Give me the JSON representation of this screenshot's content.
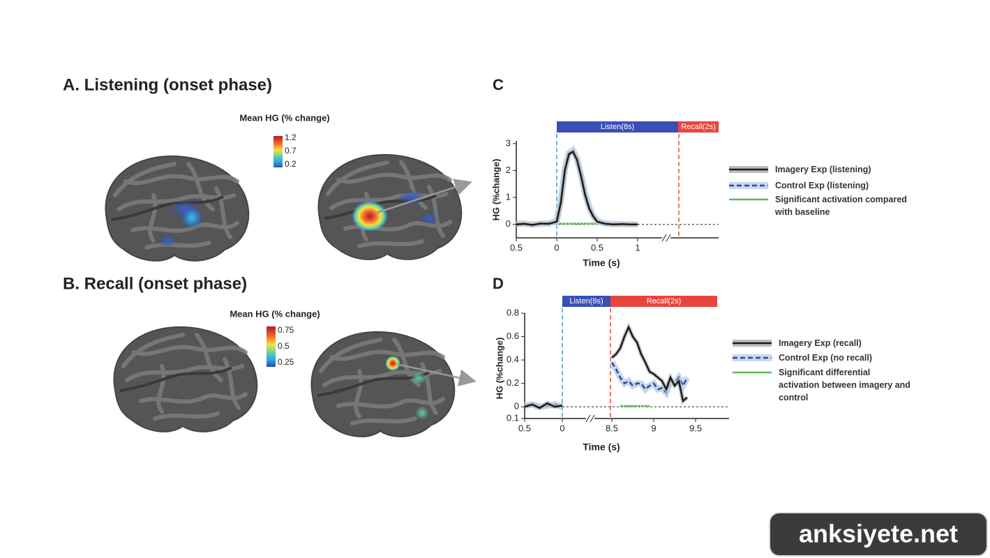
{
  "panels": [
    {
      "title": "A. Listening (onset phase)",
      "colorbar": {
        "label": "Mean HG (% change)",
        "ticks": [
          1.2,
          0.7,
          0.2
        ]
      }
    },
    {
      "title": "B. Recall (onset phase)",
      "colorbar": {
        "label": "Mean HG (% change)",
        "ticks": [
          0.75,
          0.5,
          0.25
        ]
      }
    }
  ],
  "chart_data": [
    {
      "type": "line",
      "panel": "C",
      "phases": [
        {
          "name": "Listen(8s)",
          "color": "#3a4fb5"
        },
        {
          "name": "Recall(2s)",
          "color": "#e8463c"
        }
      ],
      "ylabel": "HG (%change)",
      "xlabel": "Time (s)",
      "xlim": [
        -0.5,
        2.0
      ],
      "ylim": [
        -0.5,
        3.1
      ],
      "xticks": [
        {
          "value": -0.5,
          "label": "0.5"
        },
        0,
        0.5,
        1
      ],
      "yticks": [
        0,
        1,
        2,
        3
      ],
      "x": [
        -0.5,
        -0.4,
        -0.3,
        -0.2,
        -0.1,
        0,
        0.05,
        0.1,
        0.15,
        0.2,
        0.25,
        0.3,
        0.35,
        0.4,
        0.45,
        0.5,
        0.6,
        0.7,
        0.8,
        0.9,
        1.0
      ],
      "series": [
        {
          "name": "Imagery Exp (listening)",
          "color": "#1a1a1a",
          "style": "solid",
          "values": [
            0,
            0.02,
            -0.02,
            0.03,
            0.02,
            0.1,
            0.8,
            2.0,
            2.6,
            2.7,
            2.4,
            1.8,
            1.1,
            0.6,
            0.3,
            0.1,
            0.02,
            0,
            0.01,
            0,
            0
          ]
        },
        {
          "name": "Control Exp (listening)",
          "color": "#2b4a9e",
          "style": "dashed",
          "values": [
            0.01,
            0.03,
            -0.01,
            0.02,
            0.03,
            0.12,
            0.85,
            2.05,
            2.65,
            2.75,
            2.45,
            1.85,
            1.15,
            0.65,
            0.32,
            0.12,
            0.03,
            0.01,
            0.01,
            0,
            0
          ]
        }
      ],
      "significance": {
        "name": "Significant activation compared with baseline",
        "color": "#5cb85c",
        "x": [
          0.03,
          0.5
        ]
      }
    },
    {
      "type": "line",
      "panel": "D",
      "phases": [
        {
          "name": "Listen(8s)",
          "color": "#3a4fb5"
        },
        {
          "name": "Recall(2s)",
          "color": "#e8463c"
        }
      ],
      "ylabel": "HG (%change)",
      "xlabel": "Time (s)",
      "xlim": [
        -0.5,
        9.9
      ],
      "ylim": [
        -0.1,
        0.8
      ],
      "xticks": [
        {
          "value": -0.5,
          "label": "0.5"
        },
        0,
        8.5,
        9,
        9.5
      ],
      "yticks": [
        {
          "value": -0.1,
          "label": "0.1"
        },
        0,
        0.2,
        0.4,
        0.6,
        0.8
      ],
      "x": [
        -0.5,
        -0.4,
        -0.3,
        -0.2,
        -0.1,
        0,
        8.5,
        8.55,
        8.6,
        8.65,
        8.7,
        8.75,
        8.8,
        8.85,
        8.9,
        8.95,
        9.0,
        9.05,
        9.1,
        9.15,
        9.2,
        9.25,
        9.3,
        9.35,
        9.4
      ],
      "series": [
        {
          "name": "Imagery Exp (recall)",
          "color": "#1a1a1a",
          "style": "solid",
          "values": [
            0,
            0.02,
            -0.01,
            0.03,
            0,
            0.01,
            0.42,
            0.45,
            0.5,
            0.6,
            0.68,
            0.6,
            0.55,
            0.45,
            0.38,
            0.3,
            0.28,
            0.25,
            0.22,
            0.15,
            0.25,
            0.18,
            0.22,
            0.05,
            0.08
          ]
        },
        {
          "name": "Control Exp (no recall)",
          "color": "#2b4a9e",
          "style": "dashed",
          "values": [
            0.01,
            0.02,
            0,
            0.01,
            0.02,
            0,
            0.38,
            0.32,
            0.25,
            0.2,
            0.22,
            0.18,
            0.2,
            0.2,
            0.15,
            0.18,
            0.2,
            0.15,
            0.16,
            0.12,
            0.22,
            0.2,
            0.25,
            0.18,
            0.25
          ]
        }
      ],
      "significance": {
        "name": "Significant differential activation between imagery and control",
        "color": "#5cb85c",
        "x": [
          8.6,
          8.95
        ]
      }
    }
  ],
  "watermark": "anksiyete.net"
}
